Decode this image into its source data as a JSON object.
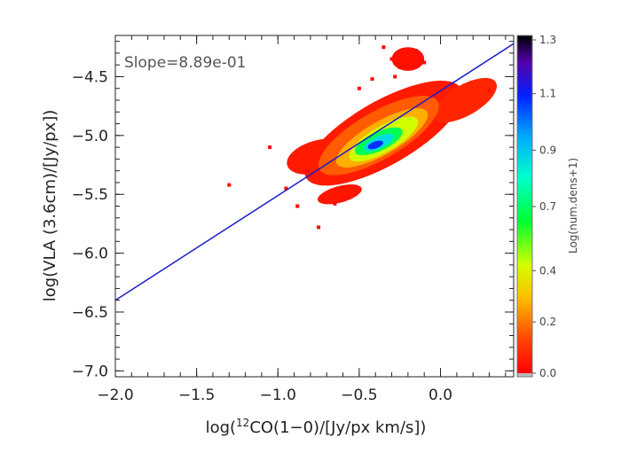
{
  "chart_data": {
    "type": "heatmap",
    "title": "",
    "annotation": "Slope=8.89e-01",
    "xlabel": {
      "prefix": "log(",
      "superscript": "12",
      "suffix": "CO(1−0)/[Jy/px km/s])"
    },
    "ylabel": "log(VLA (3.6cm)/[Jy/px])",
    "xlim": [
      -2.0,
      0.45
    ],
    "ylim": [
      -7.05,
      -4.15
    ],
    "x_ticks": [
      {
        "value": -2.0,
        "label": "−2.0"
      },
      {
        "value": -1.5,
        "label": "−1.5"
      },
      {
        "value": -1.0,
        "label": "−1.0"
      },
      {
        "value": -0.5,
        "label": "−0.5"
      },
      {
        "value": 0.0,
        "label": "0.0"
      }
    ],
    "y_ticks": [
      {
        "value": -7.0,
        "label": "−7.0"
      },
      {
        "value": -6.5,
        "label": "−6.5"
      },
      {
        "value": -6.0,
        "label": "−6.0"
      },
      {
        "value": -5.5,
        "label": "−5.5"
      },
      {
        "value": -5.0,
        "label": "−5.0"
      },
      {
        "value": -4.5,
        "label": "−4.5"
      }
    ],
    "fit_line": {
      "slope": 0.889,
      "points": [
        [
          -2.0,
          -6.4
        ],
        [
          0.45,
          -4.22
        ]
      ],
      "color": "#1a1acc"
    },
    "density_blobs": [
      {
        "x": -0.35,
        "y": -4.98,
        "rx": 0.55,
        "ry": 0.27,
        "rot": 30,
        "level": 0.05
      },
      {
        "x": -0.75,
        "y": -5.18,
        "rx": 0.2,
        "ry": 0.14,
        "rot": 15,
        "level": 0.05
      },
      {
        "x": -0.2,
        "y": -4.35,
        "rx": 0.1,
        "ry": 0.1,
        "rot": 0,
        "level": 0.03
      },
      {
        "x": -0.62,
        "y": -5.5,
        "rx": 0.14,
        "ry": 0.07,
        "rot": 15,
        "level": 0.04
      },
      {
        "x": 0.15,
        "y": -4.7,
        "rx": 0.22,
        "ry": 0.13,
        "rot": 30,
        "level": 0.07
      },
      {
        "x": -0.38,
        "y": -5.0,
        "rx": 0.42,
        "ry": 0.2,
        "rot": 30,
        "level": 0.16
      },
      {
        "x": -0.36,
        "y": -5.02,
        "rx": 0.32,
        "ry": 0.14,
        "rot": 30,
        "level": 0.27
      },
      {
        "x": -0.35,
        "y": -5.03,
        "rx": 0.24,
        "ry": 0.11,
        "rot": 30,
        "level": 0.42
      },
      {
        "x": -0.38,
        "y": -5.05,
        "rx": 0.16,
        "ry": 0.08,
        "rot": 25,
        "level": 0.62
      },
      {
        "x": -0.38,
        "y": -5.06,
        "rx": 0.1,
        "ry": 0.05,
        "rot": 25,
        "level": 0.82
      },
      {
        "x": -0.4,
        "y": -5.08,
        "rx": 0.05,
        "ry": 0.03,
        "rot": 20,
        "level": 1.05
      }
    ],
    "scatter_points": [
      {
        "x": -1.3,
        "y": -5.42
      },
      {
        "x": -0.75,
        "y": -5.78
      },
      {
        "x": -0.65,
        "y": -5.58
      },
      {
        "x": -0.88,
        "y": -5.6
      },
      {
        "x": -0.35,
        "y": -4.25
      },
      {
        "x": -0.3,
        "y": -4.35
      },
      {
        "x": -0.25,
        "y": -4.42
      },
      {
        "x": -0.15,
        "y": -4.28
      },
      {
        "x": -0.42,
        "y": -4.52
      },
      {
        "x": -0.95,
        "y": -5.45
      },
      {
        "x": -0.5,
        "y": -4.6
      },
      {
        "x": -0.28,
        "y": -4.5
      },
      {
        "x": 0.3,
        "y": -4.62
      },
      {
        "x": -0.1,
        "y": -4.38
      },
      {
        "x": -1.05,
        "y": -5.1
      },
      {
        "x": -0.82,
        "y": -5.3
      }
    ],
    "colorbar": {
      "label": "Log(num.dens+1)",
      "range": [
        0.0,
        1.3
      ],
      "ticks": [
        {
          "value": 0.0,
          "label": "0.0"
        },
        {
          "value": 0.2,
          "label": "0.2"
        },
        {
          "value": 0.4,
          "label": "0.4"
        },
        {
          "value": 0.65,
          "label": "0.7"
        },
        {
          "value": 0.87,
          "label": "0.9"
        },
        {
          "value": 1.09,
          "label": "1.1"
        },
        {
          "value": 1.3,
          "label": "1.3"
        }
      ],
      "colormap": "rainbow (red → yellow → green → cyan → blue → violet → black)"
    }
  }
}
